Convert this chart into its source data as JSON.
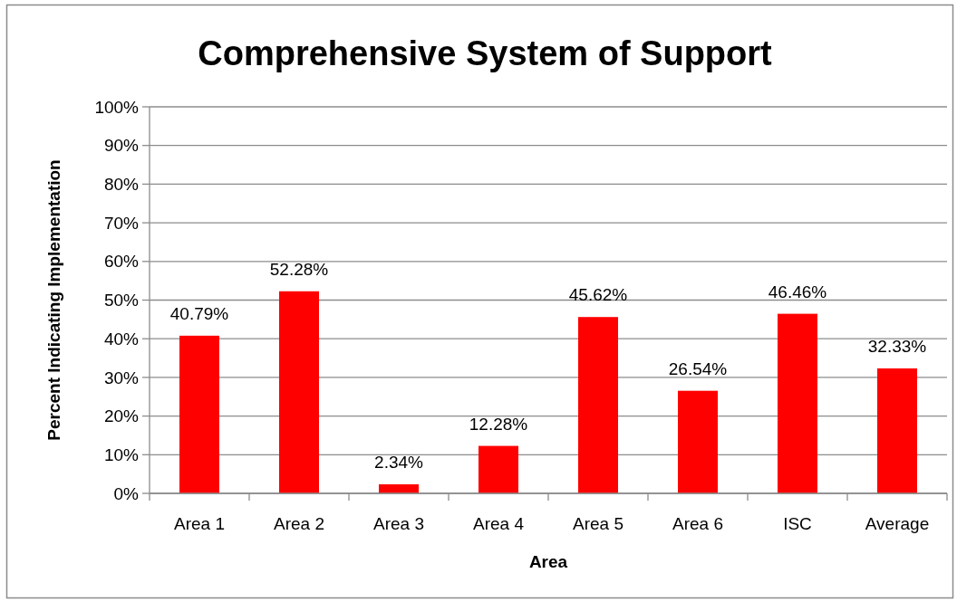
{
  "chart_data": {
    "type": "bar",
    "title": "Comprehensive System of Support",
    "xlabel": "Area",
    "ylabel": "Percent Indicating Implementation",
    "categories": [
      "Area 1",
      "Area 2",
      "Area 3",
      "Area 4",
      "Area 5",
      "Area 6",
      "ISC",
      "Average"
    ],
    "values": [
      40.79,
      52.28,
      2.34,
      12.28,
      45.62,
      26.54,
      46.46,
      32.33
    ],
    "value_labels": [
      "40.79%",
      "52.28%",
      "2.34%",
      "12.28%",
      "45.62%",
      "26.54%",
      "46.46%",
      "32.33%"
    ],
    "color": "#ff0000",
    "ylim": [
      0,
      100
    ],
    "yticks": [
      {
        "value": 0,
        "label": "0%"
      },
      {
        "value": 10,
        "label": "10%"
      },
      {
        "value": 20,
        "label": "20%"
      },
      {
        "value": 30,
        "label": "30%"
      },
      {
        "value": 40,
        "label": "40%"
      },
      {
        "value": 50,
        "label": "50%"
      },
      {
        "value": 60,
        "label": "60%"
      },
      {
        "value": 70,
        "label": "70%"
      },
      {
        "value": 80,
        "label": "80%"
      },
      {
        "value": 90,
        "label": "90%"
      },
      {
        "value": 100,
        "label": "100%"
      }
    ],
    "grid": "y"
  }
}
